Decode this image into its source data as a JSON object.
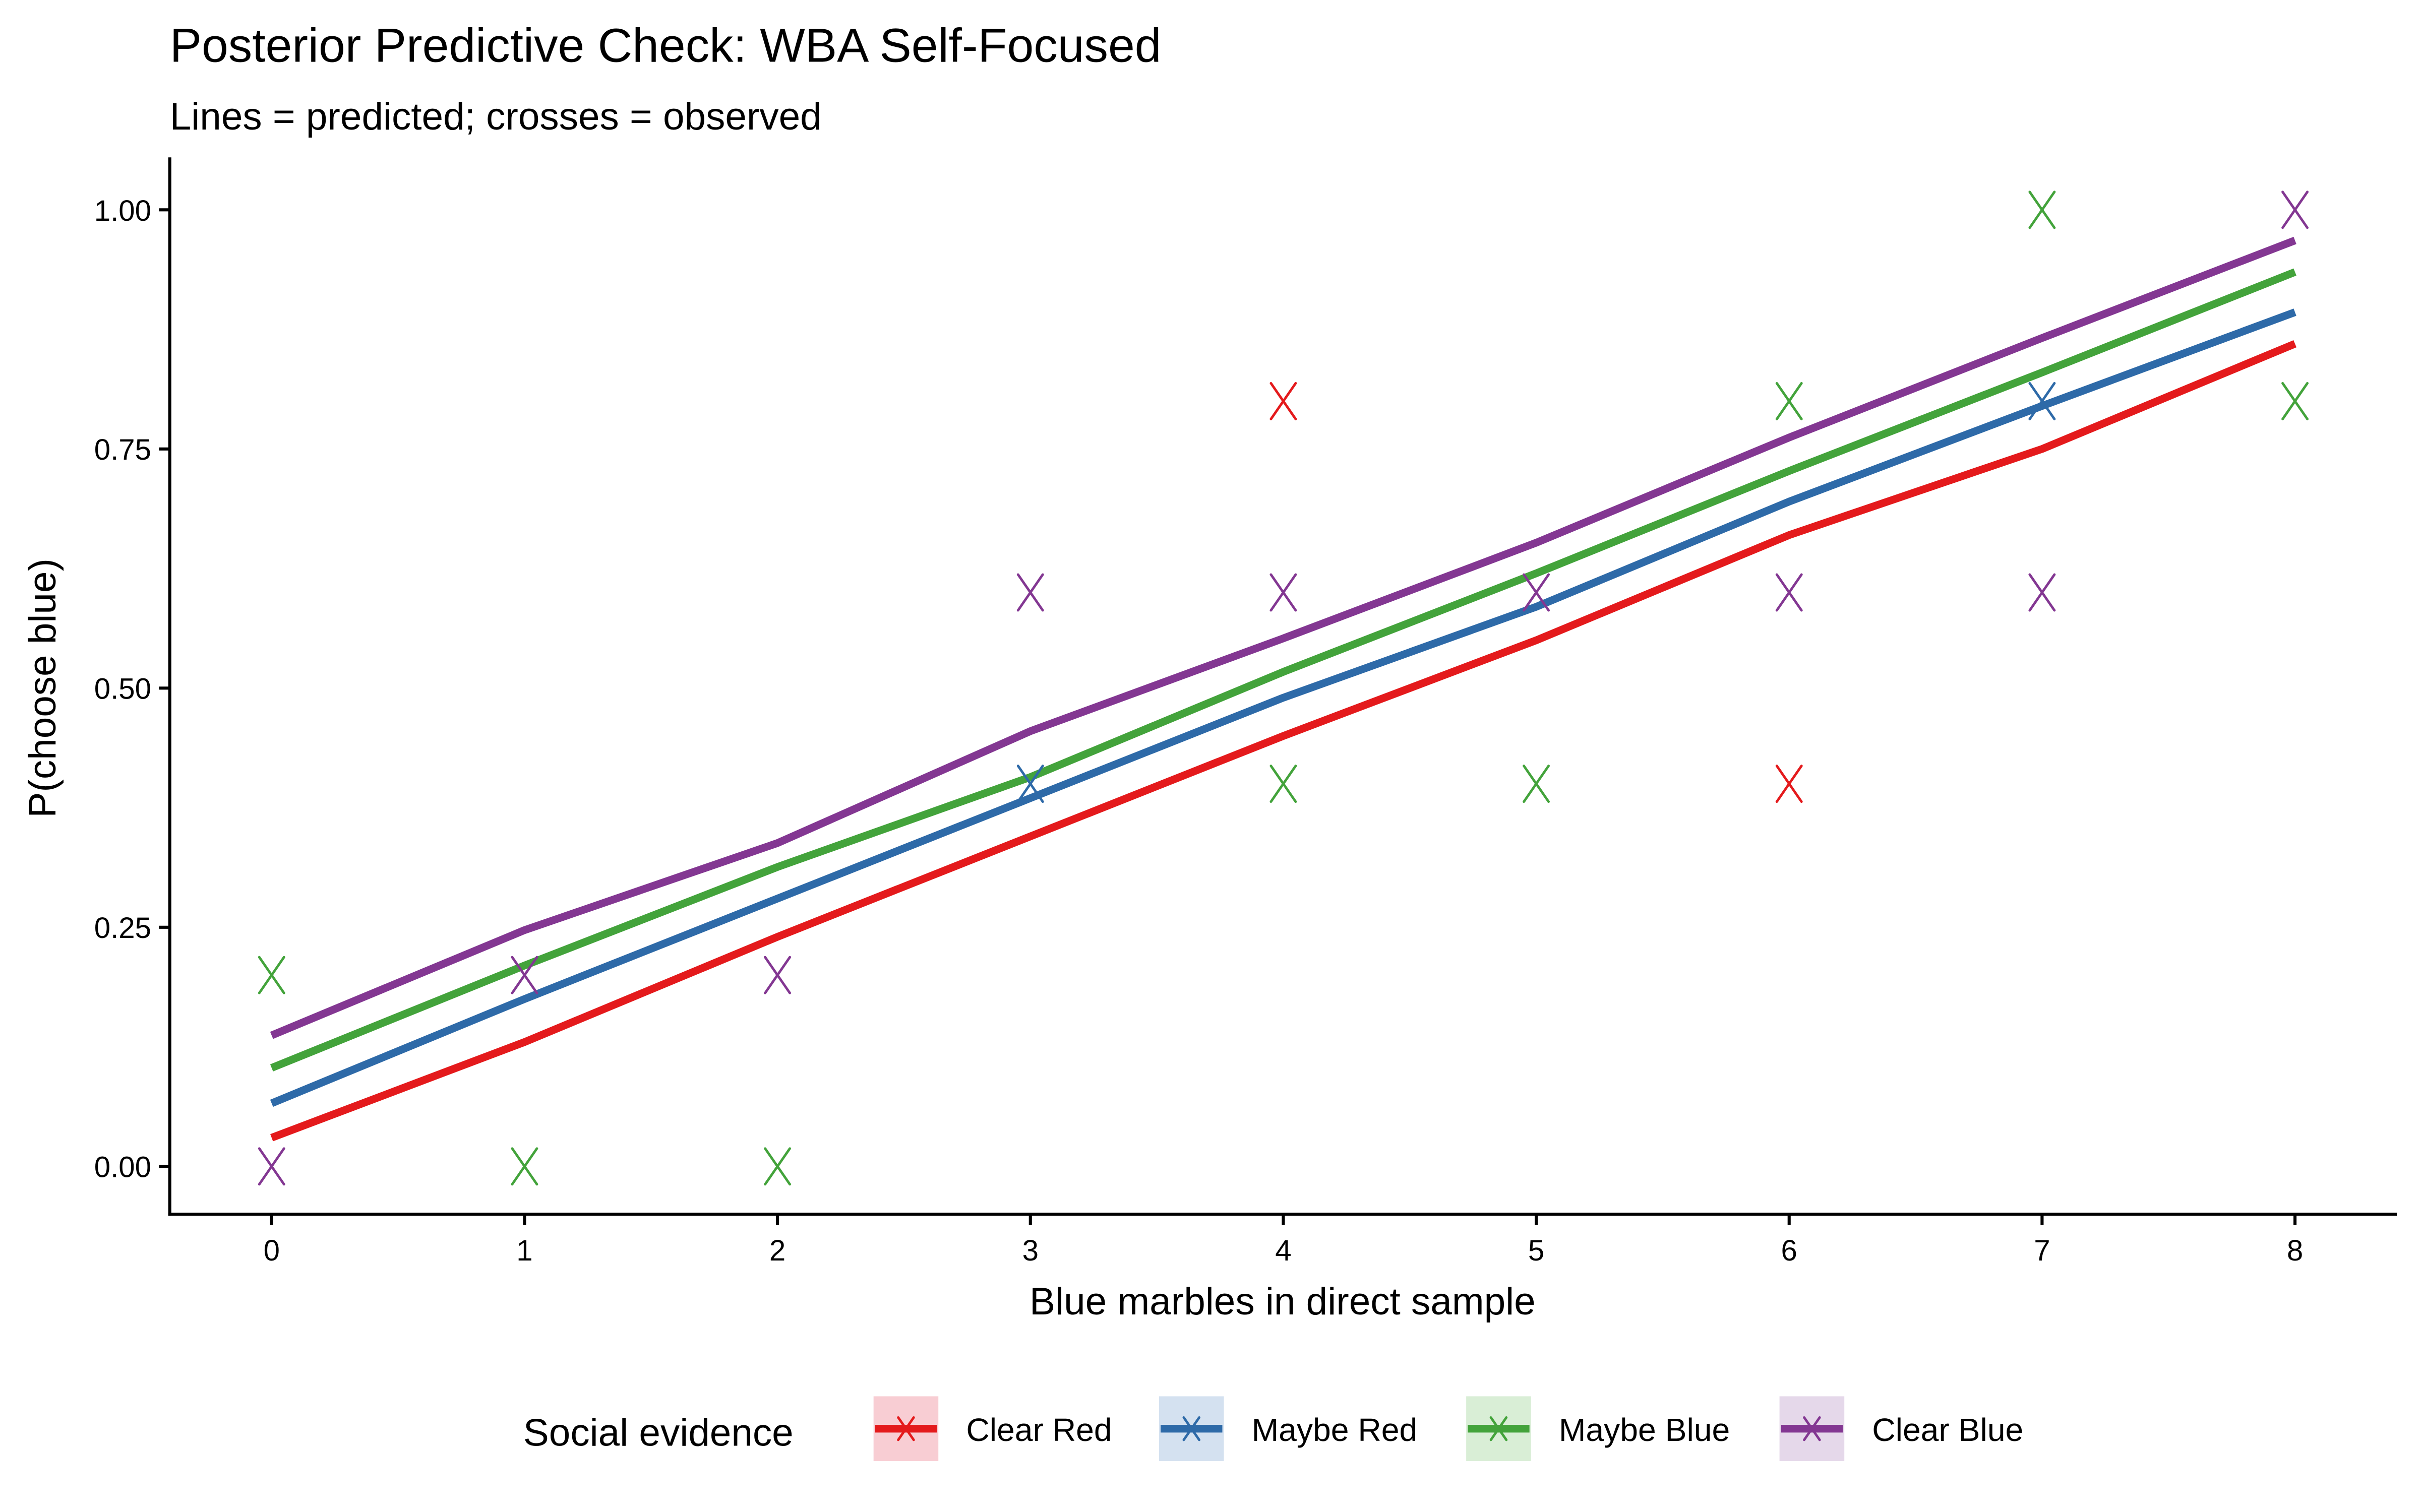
{
  "chart_data": {
    "type": "line",
    "title": "Posterior Predictive Check: WBA Self-Focused",
    "subtitle": "Lines = predicted; crosses = observed",
    "xlabel": "Blue marbles in direct sample",
    "ylabel": "P(choose blue)",
    "x": [
      0,
      1,
      2,
      3,
      4,
      5,
      6,
      7,
      8
    ],
    "xlim": [
      -0.4,
      8.4
    ],
    "ylim": [
      -0.05,
      1.05
    ],
    "xticks": [
      "0",
      "1",
      "2",
      "3",
      "4",
      "5",
      "6",
      "7",
      "8"
    ],
    "yticks": [
      0,
      0.25,
      0.5,
      0.75,
      1.0
    ],
    "ytick_labels": [
      "0.00",
      "0.25",
      "0.50",
      "0.75",
      "1.00"
    ],
    "grid": false,
    "legend": {
      "title": "Social evidence",
      "placement": "bottom",
      "entries": [
        "Clear Red",
        "Maybe Red",
        "Maybe Blue",
        "Clear Blue"
      ]
    },
    "series": [
      {
        "name": "Clear Red",
        "color": "#E41A1C",
        "predicted": [
          0.03,
          0.13,
          0.24,
          0.345,
          0.45,
          0.55,
          0.66,
          0.75,
          0.86
        ],
        "observed": [
          {
            "x": 4,
            "y": 0.8
          },
          {
            "x": 6,
            "y": 0.4
          }
        ]
      },
      {
        "name": "Maybe Red",
        "color": "#2E6AA8",
        "predicted": [
          0.066,
          0.175,
          0.28,
          0.385,
          0.49,
          0.585,
          0.695,
          0.795,
          0.893
        ],
        "observed": [
          {
            "x": 3,
            "y": 0.4
          },
          {
            "x": 7,
            "y": 0.8
          }
        ]
      },
      {
        "name": "Maybe Blue",
        "color": "#43A33B",
        "predicted": [
          0.103,
          0.21,
          0.313,
          0.407,
          0.517,
          0.62,
          0.727,
          0.83,
          0.935
        ],
        "observed": [
          {
            "x": 0,
            "y": 0.2
          },
          {
            "x": 1,
            "y": 0.0
          },
          {
            "x": 2,
            "y": 0.0
          },
          {
            "x": 4,
            "y": 0.4
          },
          {
            "x": 5,
            "y": 0.4
          },
          {
            "x": 6,
            "y": 0.8
          },
          {
            "x": 7,
            "y": 1.0
          },
          {
            "x": 8,
            "y": 0.8
          }
        ]
      },
      {
        "name": "Clear Blue",
        "color": "#833792",
        "predicted": [
          0.137,
          0.247,
          0.338,
          0.455,
          0.552,
          0.652,
          0.762,
          0.866,
          0.968
        ],
        "observed": [
          {
            "x": 0,
            "y": 0.0
          },
          {
            "x": 1,
            "y": 0.2
          },
          {
            "x": 2,
            "y": 0.2
          },
          {
            "x": 3,
            "y": 0.6
          },
          {
            "x": 4,
            "y": 0.6
          },
          {
            "x": 5,
            "y": 0.6
          },
          {
            "x": 6,
            "y": 0.6
          },
          {
            "x": 7,
            "y": 0.6
          },
          {
            "x": 8,
            "y": 1.0
          }
        ]
      }
    ]
  }
}
